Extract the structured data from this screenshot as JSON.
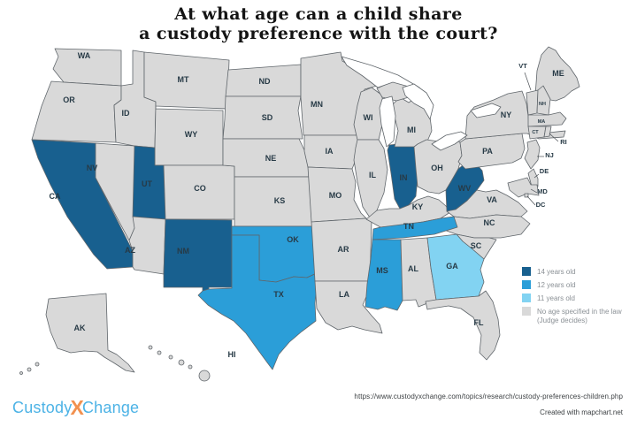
{
  "title": {
    "line1": "At what age can a child share",
    "line2": "a custody preference with the court?"
  },
  "legend": {
    "items": [
      {
        "category": "14",
        "color": "#18608f",
        "label": "14 years old",
        "label2": ""
      },
      {
        "category": "12",
        "color": "#2b9ed8",
        "label": "12 years old",
        "label2": ""
      },
      {
        "category": "11",
        "color": "#82d3f2",
        "label": "11 years old",
        "label2": ""
      },
      {
        "category": "none",
        "color": "#d9d9d9",
        "label": "No age specified in the law",
        "label2": "(Judge decides)"
      }
    ]
  },
  "map": {
    "states": [
      {
        "id": "WA",
        "label": "WA",
        "category": "none"
      },
      {
        "id": "OR",
        "label": "OR",
        "category": "none"
      },
      {
        "id": "CA",
        "label": "CA",
        "category": "14"
      },
      {
        "id": "NV",
        "label": "NV",
        "category": "none"
      },
      {
        "id": "ID",
        "label": "ID",
        "category": "none"
      },
      {
        "id": "MT",
        "label": "MT",
        "category": "none"
      },
      {
        "id": "WY",
        "label": "WY",
        "category": "none"
      },
      {
        "id": "UT",
        "label": "UT",
        "category": "14"
      },
      {
        "id": "CO",
        "label": "CO",
        "category": "none"
      },
      {
        "id": "AZ",
        "label": "AZ",
        "category": "none"
      },
      {
        "id": "NM",
        "label": "NM",
        "category": "14"
      },
      {
        "id": "ND",
        "label": "ND",
        "category": "none"
      },
      {
        "id": "SD",
        "label": "SD",
        "category": "none"
      },
      {
        "id": "NE",
        "label": "NE",
        "category": "none"
      },
      {
        "id": "KS",
        "label": "KS",
        "category": "none"
      },
      {
        "id": "OK",
        "label": "OK",
        "category": "12"
      },
      {
        "id": "TX",
        "label": "TX",
        "category": "12"
      },
      {
        "id": "MN",
        "label": "MN",
        "category": "none"
      },
      {
        "id": "IA",
        "label": "IA",
        "category": "none"
      },
      {
        "id": "MO",
        "label": "MO",
        "category": "none"
      },
      {
        "id": "AR",
        "label": "AR",
        "category": "none"
      },
      {
        "id": "LA",
        "label": "LA",
        "category": "none"
      },
      {
        "id": "WI",
        "label": "WI",
        "category": "none"
      },
      {
        "id": "IL",
        "label": "IL",
        "category": "none"
      },
      {
        "id": "IN",
        "label": "IN",
        "category": "14"
      },
      {
        "id": "MI",
        "label": "MI",
        "category": "none"
      },
      {
        "id": "OH",
        "label": "OH",
        "category": "none"
      },
      {
        "id": "KY",
        "label": "KY",
        "category": "none"
      },
      {
        "id": "WV",
        "label": "WV",
        "category": "14"
      },
      {
        "id": "VA",
        "label": "VA",
        "category": "none"
      },
      {
        "id": "NC",
        "label": "NC",
        "category": "none"
      },
      {
        "id": "SC",
        "label": "SC",
        "category": "none"
      },
      {
        "id": "TN",
        "label": "TN",
        "category": "12"
      },
      {
        "id": "MS",
        "label": "MS",
        "category": "12"
      },
      {
        "id": "AL",
        "label": "AL",
        "category": "none"
      },
      {
        "id": "GA",
        "label": "GA",
        "category": "11"
      },
      {
        "id": "FL",
        "label": "FL",
        "category": "none"
      },
      {
        "id": "PA",
        "label": "PA",
        "category": "none"
      },
      {
        "id": "NY",
        "label": "NY",
        "category": "none"
      },
      {
        "id": "ME",
        "label": "ME",
        "category": "none"
      },
      {
        "id": "VT",
        "label": "VT",
        "category": "none"
      },
      {
        "id": "NH",
        "label": "NH",
        "category": "none"
      },
      {
        "id": "MA",
        "label": "MA",
        "category": "none"
      },
      {
        "id": "CT",
        "label": "CT",
        "category": "none"
      },
      {
        "id": "RI",
        "label": "RI",
        "category": "none"
      },
      {
        "id": "NJ",
        "label": "NJ",
        "category": "none"
      },
      {
        "id": "DE",
        "label": "DE",
        "category": "none"
      },
      {
        "id": "MD",
        "label": "MD",
        "category": "none"
      },
      {
        "id": "DC",
        "label": "DC",
        "category": "none"
      },
      {
        "id": "AK",
        "label": "AK",
        "category": "none"
      },
      {
        "id": "HI",
        "label": "HI",
        "category": "none"
      }
    ]
  },
  "footer": {
    "url": "https://www.custodyxchange.com/topics/research/custody-preferences-children.php",
    "credit": "Created with mapchart.net"
  },
  "logo": {
    "part1": "Custody",
    "x": "X",
    "part2": "Change"
  }
}
